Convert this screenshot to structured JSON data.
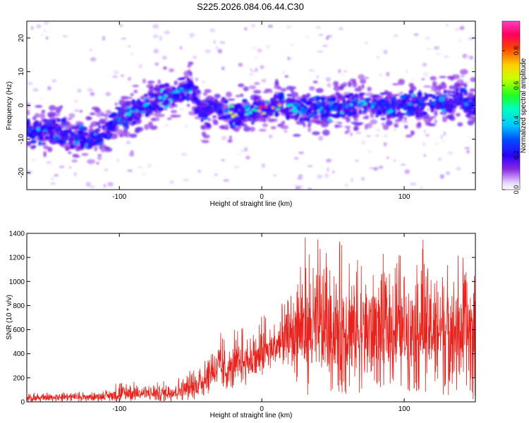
{
  "title": "S225.2026.084.06.44.C30",
  "chart_data": [
    {
      "type": "heatmap",
      "xlabel": "Height of straight line (km)",
      "ylabel": "Frequency (Hz)",
      "xlim": [
        -165,
        150
      ],
      "ylim": [
        -25,
        25
      ],
      "x_ticks": [
        -100,
        0,
        100
      ],
      "y_ticks": [
        -20,
        -10,
        0,
        10,
        20
      ],
      "colorbar": {
        "label": "Normalized spectral amplitude",
        "range": [
          0,
          0.97
        ],
        "ticks": [
          0.0,
          0.2,
          0.4,
          0.6,
          0.8
        ]
      },
      "ridge": {
        "x": [
          -165,
          -150,
          -140,
          -130,
          -120,
          -110,
          -100,
          -90,
          -80,
          -70,
          -60,
          -55,
          -50,
          -45,
          -40,
          -35,
          -30,
          -25,
          -20,
          -10,
          0,
          10,
          20,
          30,
          40,
          50,
          60,
          70,
          80,
          90,
          100,
          110,
          120,
          130,
          140,
          150
        ],
        "frequency": [
          -8,
          -7,
          -8,
          -9,
          -10,
          -8,
          -4,
          -2,
          0,
          2,
          4,
          5,
          5,
          1,
          -3,
          -1,
          0,
          -2,
          -3,
          -2,
          -1,
          0,
          0,
          -1,
          -1,
          -1,
          0,
          1,
          0,
          -1,
          0,
          0,
          1,
          1,
          2,
          -1
        ],
        "peak_amplitude": [
          0.3,
          0.25,
          0.25,
          0.3,
          0.3,
          0.3,
          0.35,
          0.4,
          0.4,
          0.45,
          0.45,
          0.4,
          0.3,
          0.2,
          0.25,
          0.2,
          0.3,
          0.4,
          0.9,
          0.55,
          0.97,
          0.9,
          0.5,
          0.4,
          0.3,
          0.35,
          0.4,
          0.5,
          0.35,
          0.3,
          0.3,
          0.3,
          0.35,
          0.3,
          0.3,
          0.25
        ]
      }
    },
    {
      "type": "line",
      "xlabel": "Height of straight line (km)",
      "ylabel": "SNR (10 * v/v)",
      "xlim": [
        -165,
        150
      ],
      "ylim": [
        0,
        1400
      ],
      "x_ticks": [
        -100,
        0,
        100
      ],
      "y_ticks": [
        0,
        200,
        400,
        600,
        800,
        1000,
        1200,
        1400
      ],
      "color": "#e8231d",
      "series": [
        {
          "x": [
            -165,
            -150,
            -140,
            -130,
            -120,
            -110,
            -100,
            -90,
            -80,
            -70,
            -60,
            -50,
            -45,
            -40,
            -35,
            -30,
            -25,
            -20,
            -15,
            -10,
            -5,
            0,
            5,
            10,
            15,
            20,
            25,
            27,
            30,
            40,
            50,
            60,
            70,
            80,
            90,
            100,
            110,
            120,
            130,
            140,
            150
          ],
          "mean": [
            30,
            35,
            40,
            40,
            40,
            45,
            60,
            70,
            70,
            70,
            90,
            120,
            140,
            190,
            260,
            280,
            250,
            280,
            330,
            330,
            350,
            390,
            420,
            450,
            500,
            530,
            600,
            620,
            600,
            600,
            590,
            600,
            600,
            610,
            600,
            600,
            620,
            600,
            610,
            600,
            600
          ],
          "max": [
            90,
            80,
            100,
            90,
            80,
            100,
            180,
            170,
            150,
            170,
            220,
            270,
            310,
            450,
            560,
            600,
            510,
            610,
            640,
            640,
            650,
            720,
            760,
            800,
            820,
            880,
            1200,
            1320,
            1380,
            1380,
            1350,
            1320,
            1280,
            1240,
            1230,
            1260,
            1400,
            1330,
            1260,
            1250,
            1140
          ],
          "min": [
            0,
            0,
            0,
            0,
            0,
            0,
            0,
            0,
            0,
            0,
            0,
            10,
            20,
            40,
            60,
            90,
            110,
            120,
            150,
            150,
            170,
            210,
            240,
            280,
            300,
            320,
            150,
            80,
            60,
            40,
            20,
            30,
            50,
            40,
            20,
            30,
            60,
            30,
            40,
            20,
            0
          ]
        }
      ]
    }
  ]
}
